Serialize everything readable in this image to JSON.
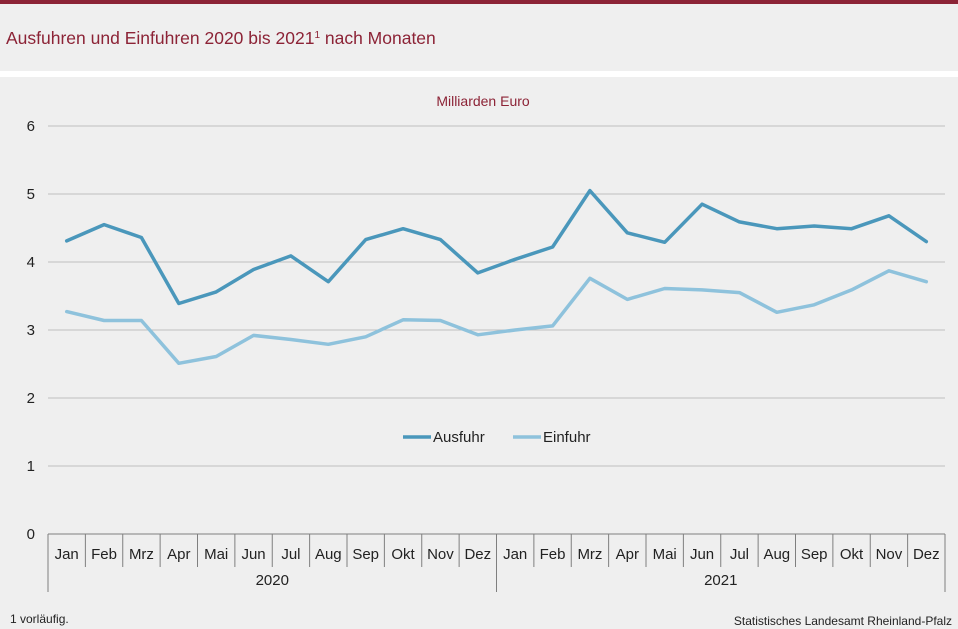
{
  "header": {
    "title": "Ausfuhren und Einfuhren 2020 bis 2021",
    "title_footnote_mark": "1",
    "title_suffix": " nach Monaten"
  },
  "footer": {
    "footnote": "1 vorläufig.",
    "source": "Statistisches Landesamt Rheinland-Pfalz"
  },
  "colors": {
    "accent": "#8c2336",
    "ausfuhr": "#4a97bb",
    "einfuhr": "#8ec2dc",
    "grid": "#bfbfbf",
    "axis": "#7f7f7f"
  },
  "chart_data": {
    "type": "line",
    "unit_label": "Milliarden Euro",
    "ylim": [
      0,
      6
    ],
    "yticks": [
      "0",
      "1",
      "2",
      "3",
      "4",
      "5",
      "6"
    ],
    "grid": true,
    "legend_position": "center",
    "categories": [
      "Jan",
      "Feb",
      "Mrz",
      "Apr",
      "Mai",
      "Jun",
      "Jul",
      "Aug",
      "Sep",
      "Okt",
      "Nov",
      "Dez",
      "Jan",
      "Feb",
      "Mrz",
      "Apr",
      "Mai",
      "Jun",
      "Jul",
      "Aug",
      "Sep",
      "Okt",
      "Nov",
      "Dez"
    ],
    "years": [
      {
        "label": "2020",
        "months": 12
      },
      {
        "label": "2021",
        "months": 12
      }
    ],
    "series": [
      {
        "name": "Ausfuhr",
        "values": [
          4.31,
          4.55,
          4.36,
          3.39,
          3.56,
          3.89,
          4.09,
          3.71,
          4.33,
          4.49,
          4.33,
          3.84,
          4.04,
          4.22,
          5.05,
          4.43,
          4.29,
          4.85,
          4.59,
          4.49,
          4.53,
          4.49,
          4.68,
          4.3
        ]
      },
      {
        "name": "Einfuhr",
        "values": [
          3.27,
          3.14,
          3.14,
          2.51,
          2.61,
          2.92,
          2.86,
          2.79,
          2.9,
          3.15,
          3.14,
          2.93,
          3.0,
          3.06,
          3.76,
          3.45,
          3.61,
          3.59,
          3.55,
          3.26,
          3.37,
          3.59,
          3.87,
          3.71
        ]
      }
    ]
  }
}
